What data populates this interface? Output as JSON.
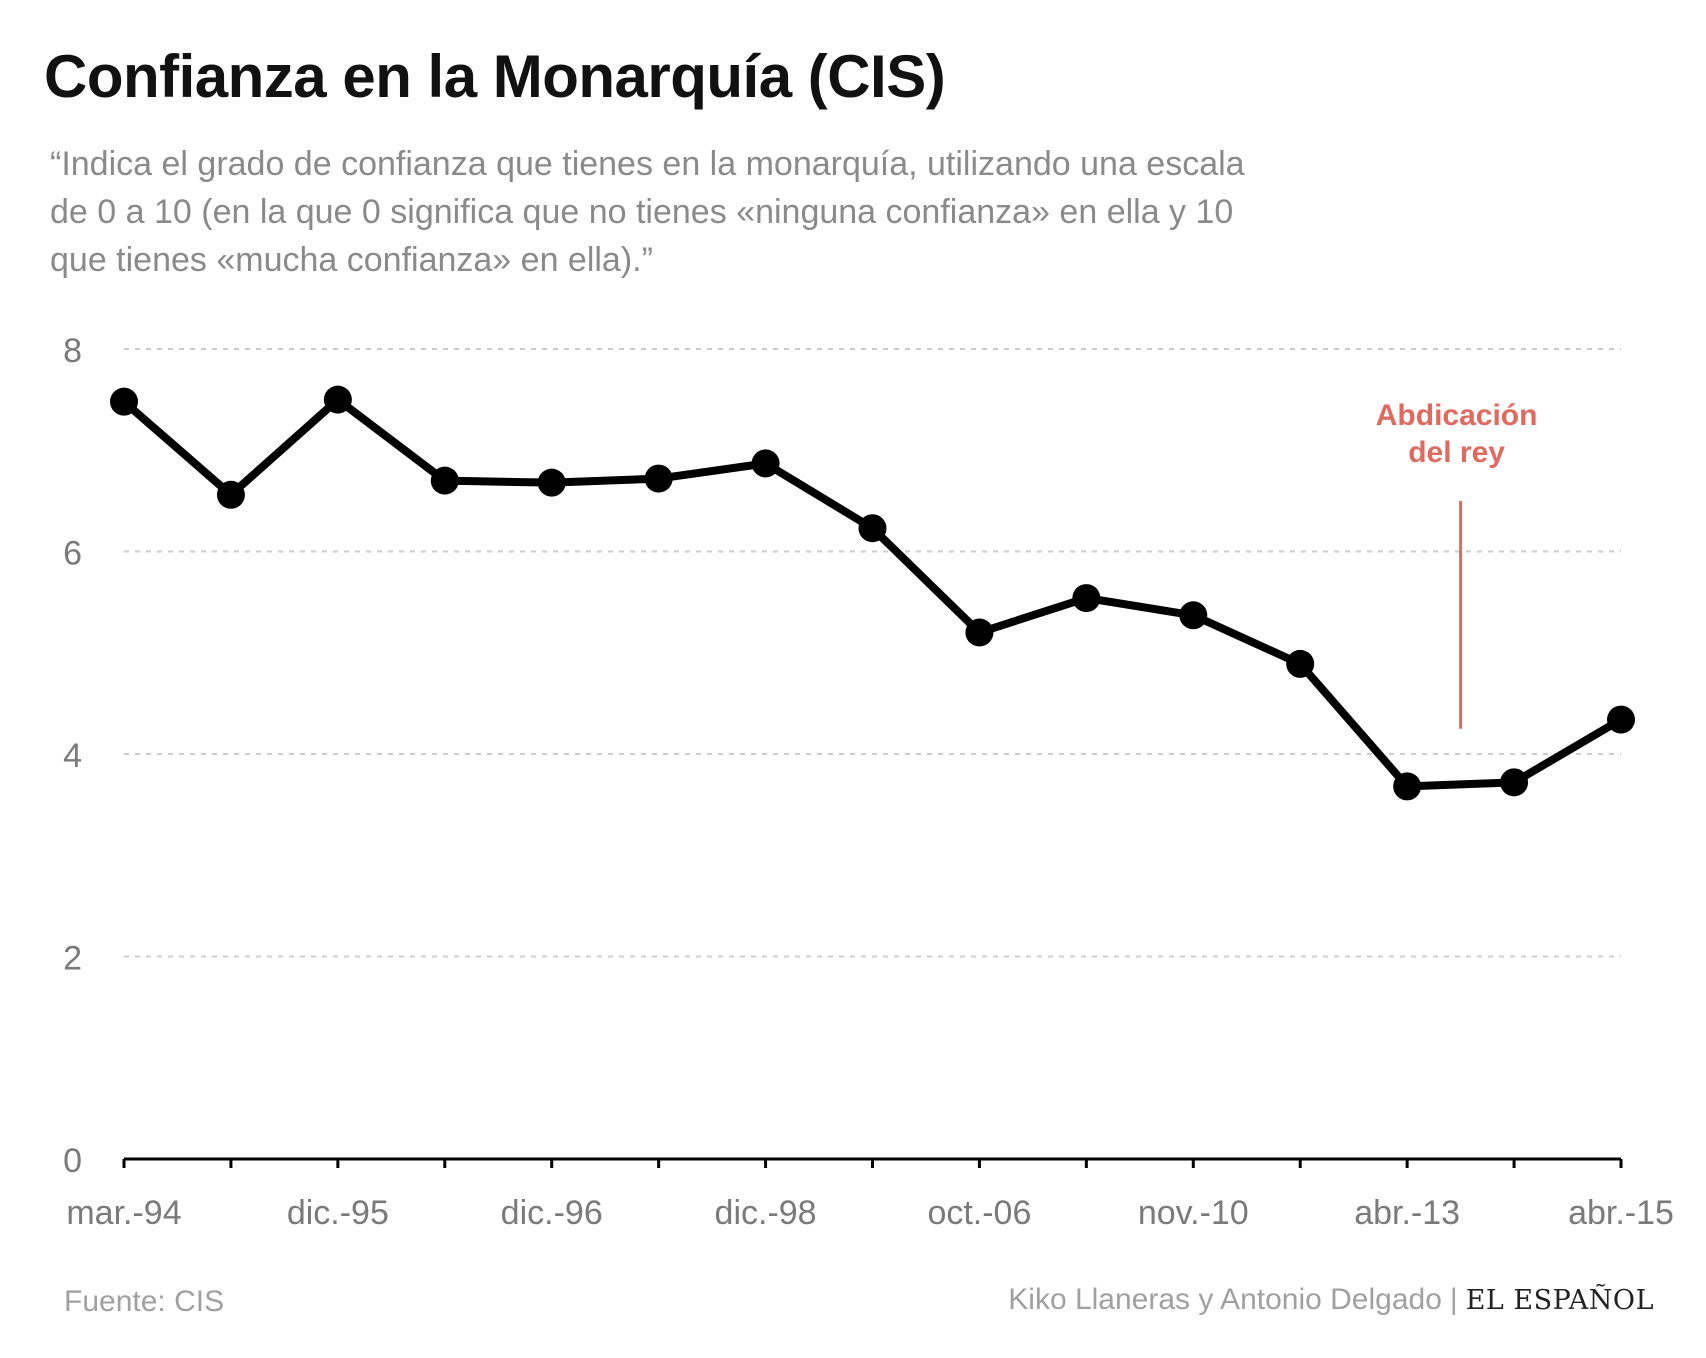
{
  "header": {
    "title": "Confianza en la Monarquía (CIS)",
    "subtitle": "“Indica el grado de confianza que tienes en la monarquía, utilizando una escala de 0 a 10 (en la que 0 significa que no tienes «ninguna confianza» en ella y 10 que tienes «mucha confianza» en ella).”"
  },
  "chart_data": {
    "type": "line",
    "title": "Confianza en la Monarquía (CIS)",
    "xlabel": "",
    "ylabel": "",
    "ylim": [
      0,
      8
    ],
    "yticks": [
      "0",
      "2",
      "4",
      "6",
      "8"
    ],
    "x_tick_labels": [
      "mar.-94",
      "dic.-95",
      "dic.-96",
      "dic.-98",
      "oct.-06",
      "nov.-10",
      "abr.-13",
      "abr.-15"
    ],
    "grid": true,
    "series": [
      {
        "values": [
          7.48,
          6.56,
          7.5,
          6.7,
          6.68,
          6.72,
          6.87,
          6.23,
          5.2,
          5.54,
          5.37,
          4.89,
          3.68,
          3.72,
          4.34
        ]
      }
    ],
    "annotation": {
      "text_line1": "Abdicación",
      "text_line2": "del rey",
      "color": "#e06a5f",
      "value_range": [
        4.25,
        6.5
      ]
    },
    "colors": {
      "line": "#000000",
      "grid": "#cccccc",
      "axis_text": "#7a7a7a"
    }
  },
  "footer": {
    "source": "Fuente: CIS",
    "authors": "Kiko Llaneras y Antonio Delgado",
    "separator": "|",
    "logo": "EL ESPAÑOL"
  }
}
